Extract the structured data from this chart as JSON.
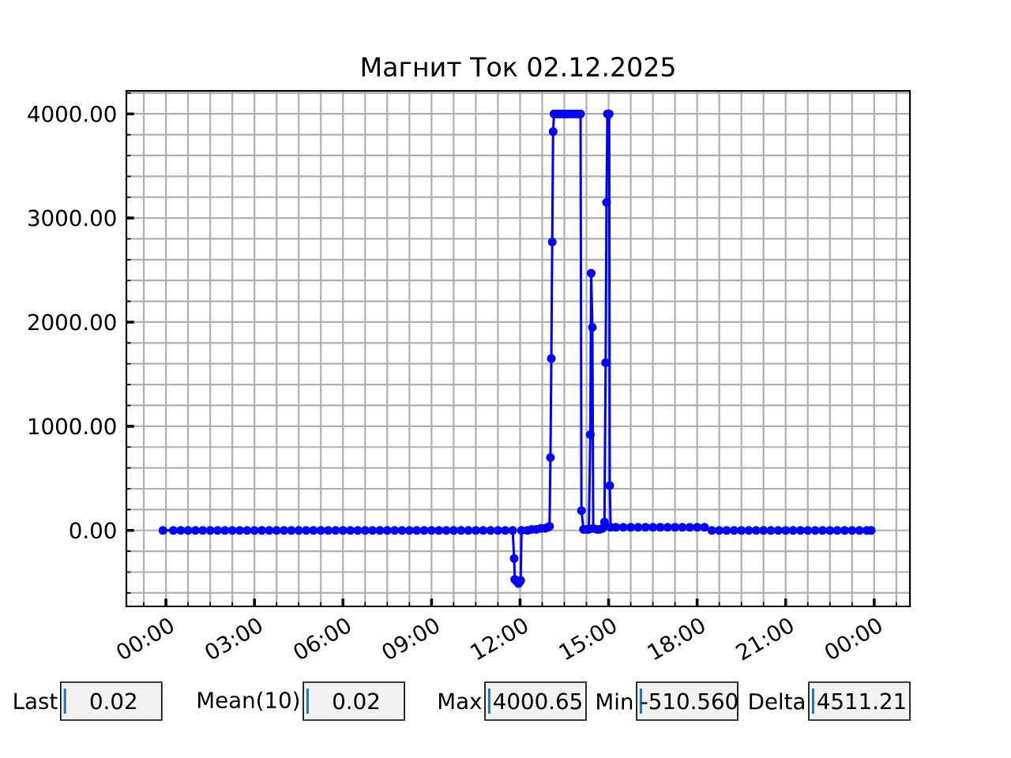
{
  "chart_data": {
    "type": "line",
    "title": "Магнит Ток 02.12.2025",
    "color": "#0000ff",
    "marker": "circle",
    "grid": true,
    "xlim": [
      -1.34,
      25.21
    ],
    "ylim": [
      -730,
      4220
    ],
    "xticks": [
      {
        "value": -0.75,
        "label": null
      },
      {
        "value": 0,
        "label": "00:00"
      },
      {
        "value": 0.75,
        "label": null
      },
      {
        "value": 1.5,
        "label": null
      },
      {
        "value": 2.25,
        "label": null
      },
      {
        "value": 3,
        "label": "03:00"
      },
      {
        "value": 3.75,
        "label": null
      },
      {
        "value": 4.5,
        "label": null
      },
      {
        "value": 5.25,
        "label": null
      },
      {
        "value": 6,
        "label": "06:00"
      },
      {
        "value": 6.75,
        "label": null
      },
      {
        "value": 7.5,
        "label": null
      },
      {
        "value": 8.25,
        "label": null
      },
      {
        "value": 9,
        "label": "09:00"
      },
      {
        "value": 9.75,
        "label": null
      },
      {
        "value": 10.5,
        "label": null
      },
      {
        "value": 11.25,
        "label": null
      },
      {
        "value": 12,
        "label": "12:00"
      },
      {
        "value": 12.75,
        "label": null
      },
      {
        "value": 13.5,
        "label": null
      },
      {
        "value": 14.25,
        "label": null
      },
      {
        "value": 15,
        "label": "15:00"
      },
      {
        "value": 15.75,
        "label": null
      },
      {
        "value": 16.5,
        "label": null
      },
      {
        "value": 17.25,
        "label": null
      },
      {
        "value": 18,
        "label": "18:00"
      },
      {
        "value": 18.75,
        "label": null
      },
      {
        "value": 19.5,
        "label": null
      },
      {
        "value": 20.25,
        "label": null
      },
      {
        "value": 21,
        "label": "21:00"
      },
      {
        "value": 21.75,
        "label": null
      },
      {
        "value": 22.5,
        "label": null
      },
      {
        "value": 23.25,
        "label": null
      },
      {
        "value": 24,
        "label": "00:00"
      },
      {
        "value": 24.75,
        "label": null
      }
    ],
    "yticks": [
      {
        "value": -600,
        "label": null
      },
      {
        "value": -400,
        "label": null
      },
      {
        "value": -200,
        "label": null
      },
      {
        "value": 0,
        "label": "0.00"
      },
      {
        "value": 200,
        "label": null
      },
      {
        "value": 400,
        "label": null
      },
      {
        "value": 600,
        "label": null
      },
      {
        "value": 800,
        "label": null
      },
      {
        "value": 1000,
        "label": "1000.00"
      },
      {
        "value": 1200,
        "label": null
      },
      {
        "value": 1400,
        "label": null
      },
      {
        "value": 1600,
        "label": null
      },
      {
        "value": 1800,
        "label": null
      },
      {
        "value": 2000,
        "label": "2000.00"
      },
      {
        "value": 2200,
        "label": null
      },
      {
        "value": 2400,
        "label": null
      },
      {
        "value": 2600,
        "label": null
      },
      {
        "value": 2800,
        "label": null
      },
      {
        "value": 3000,
        "label": "3000.00"
      },
      {
        "value": 3200,
        "label": null
      },
      {
        "value": 3400,
        "label": null
      },
      {
        "value": 3600,
        "label": null
      },
      {
        "value": 3800,
        "label": null
      },
      {
        "value": 4000,
        "label": "4000.00"
      },
      {
        "value": 4200,
        "label": null
      }
    ],
    "x": [
      -0.1,
      0.25,
      0.5,
      0.75,
      1,
      1.25,
      1.5,
      1.75,
      2,
      2.25,
      2.5,
      2.75,
      3,
      3.25,
      3.5,
      3.75,
      4,
      4.25,
      4.5,
      4.75,
      5,
      5.25,
      5.5,
      5.75,
      6,
      6.25,
      6.5,
      6.75,
      7,
      7.25,
      7.5,
      7.75,
      8,
      8.25,
      8.5,
      8.75,
      9,
      9.25,
      9.5,
      9.75,
      10,
      10.25,
      10.5,
      10.75,
      11,
      11.25,
      11.5,
      11.75,
      11.8,
      11.82,
      11.88,
      11.95,
      12,
      12.02,
      12.05,
      12.25,
      12.4,
      12.55,
      12.7,
      12.85,
      12.95,
      13,
      13.03,
      13.06,
      13.09,
      13.12,
      13.15,
      13.25,
      13.35,
      13.45,
      13.55,
      13.65,
      13.75,
      13.85,
      13.95,
      14.05,
      14.08,
      14.15,
      14.25,
      14.33,
      14.38,
      14.41,
      14.45,
      14.48,
      14.6,
      14.7,
      14.8,
      14.86,
      14.9,
      14.93,
      14.96,
      14.99,
      15.02,
      15.04,
      15.07,
      15.25,
      15.5,
      15.75,
      16,
      16.25,
      16.5,
      16.75,
      17,
      17.25,
      17.5,
      17.75,
      18,
      18.25,
      18.5,
      18.75,
      19,
      19.25,
      19.5,
      19.75,
      20,
      20.25,
      20.5,
      20.75,
      21,
      21.25,
      21.5,
      21.75,
      22,
      22.25,
      22.5,
      22.75,
      23,
      23.25,
      23.5,
      23.75,
      23.9
    ],
    "values": [
      0,
      0,
      0,
      0,
      0,
      0,
      0,
      0,
      0,
      0,
      0,
      0,
      0,
      0,
      0,
      0,
      0,
      0,
      0,
      0,
      0,
      0,
      0,
      0,
      0,
      0,
      0,
      0,
      0,
      0,
      0,
      0,
      0,
      0,
      0,
      0,
      0,
      0,
      0,
      0,
      0,
      0,
      0,
      0,
      0,
      0,
      0,
      0,
      -270,
      -470,
      -490,
      -510,
      -490,
      -480,
      0,
      0,
      10,
      10,
      20,
      20,
      30,
      40,
      700,
      1650,
      2770,
      3830,
      4000,
      4000,
      4000,
      4000,
      4000,
      4000,
      4000,
      4000,
      4000,
      4000,
      190,
      10,
      10,
      10,
      920,
      2470,
      1950,
      20,
      10,
      10,
      20,
      80,
      1610,
      3150,
      4000,
      4000,
      4000,
      430,
      30,
      30,
      30,
      30,
      30,
      30,
      30,
      30,
      30,
      30,
      30,
      30,
      30,
      30,
      0,
      0,
      0,
      0,
      0,
      0,
      0,
      0,
      0,
      0,
      0,
      0,
      0,
      0,
      0,
      0,
      0,
      0,
      0,
      0,
      0,
      0,
      0
    ],
    "annotations": [
      "Last",
      "0.02",
      "Mean(10)",
      "0.02",
      "Max",
      "4000.65",
      "Min",
      "-510.560",
      "Delta",
      "4511.21"
    ]
  }
}
